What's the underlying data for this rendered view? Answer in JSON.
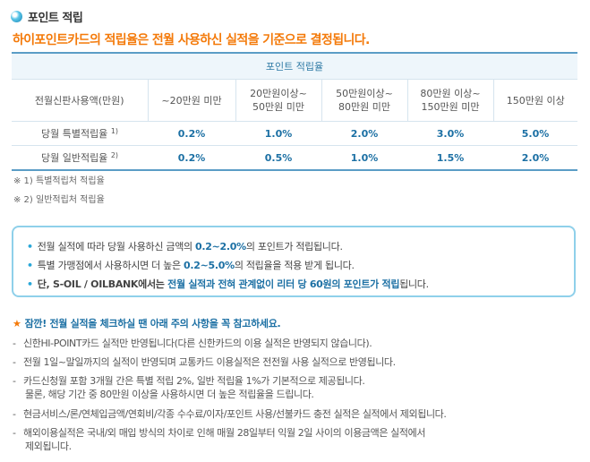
{
  "header": {
    "icon": "bullet-circle-icon",
    "title": "포인트 적립",
    "headline": "하이포인트카드의 적립율은 전월 사용하신 실적을 기준으로 결정됩니다."
  },
  "table": {
    "caption": "포인트 적립율",
    "headers": [
      "전월신판사용액(만원)",
      "~20만원 미만",
      "20만원이상~\n50만원 미만",
      "50만원이상~\n80만원 미만",
      "80만원 이상~\n150만원 미만",
      "150만원 이상"
    ],
    "rows": [
      {
        "label": "당월 특별적립율",
        "note": "1)",
        "values": [
          "0.2%",
          "1.0%",
          "2.0%",
          "3.0%",
          "5.0%"
        ]
      },
      {
        "label": "당월 일반적립율",
        "note": "2)",
        "values": [
          "0.2%",
          "0.5%",
          "1.0%",
          "1.5%",
          "2.0%"
        ]
      }
    ],
    "footnotes": [
      "※ 1) 특별적립처 적립율",
      "※ 2) 일반적립처 적립율"
    ]
  },
  "infobox": {
    "lines": [
      {
        "pre": "전월 실적에 따라 당월 사용하신 금액의 ",
        "hl": "0.2~2.0%",
        "post": "의 포인트가 적립됩니다."
      },
      {
        "pre": "특별 가맹점에서 사용하시면 더 높은 ",
        "hl": "0.2~5.0%",
        "post": "의 적립율을 적용 받게 됩니다."
      },
      {
        "pre": "단, S-OIL / OILBANK에서는 ",
        "hl": "전월 실적과 전혀 관계없이 리터 당 60원의 포인트가 적립",
        "post": "됩니다."
      }
    ]
  },
  "notice": {
    "title": "잠깐! 전월 실적을 체크하실 땐 아래 주의 사항을 꼭 참고하세요.",
    "items": [
      {
        "text": "신한HI-POINT카드 실적만 반영됩니다(다른 신한카드의 이용 실적은 반영되지 않습니다).",
        "cont": ""
      },
      {
        "text": "전월 1일~말일까지의 실적이 반영되며 교통카드 이용실적은 전전월 사용 실적으로 반영됩니다.",
        "cont": ""
      },
      {
        "text": "카드신청월 포함 3개월 간은 특별 적립 2%, 일반 적립율 1%가 기본적으로 제공됩니다.",
        "cont": "물론, 해당 기간 중 80만원 이상을 사용하시면 더 높은 적립율을 드립니다."
      },
      {
        "text": "현금서비스/론/연체입금액/연회비/각종 수수료/이자/포인트 사용/선불카드 충전 실적은 실적에서 제외됩니다.",
        "cont": ""
      },
      {
        "text": "해외이용실적은 국내/외 매입 방식의 차이로 인해 매월 28일부터 익월 2일 사이의 이용금액은 실적에서",
        "cont": "제외됩니다."
      }
    ]
  }
}
